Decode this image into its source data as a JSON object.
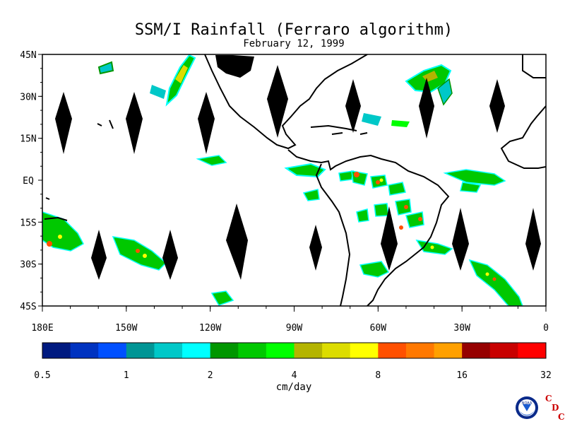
{
  "title": "SSM/I Rainfall (Ferraro algorithm)",
  "subtitle": "February 12, 1999",
  "lat_labels": [
    "45N",
    "30N",
    "15N",
    "EQ",
    "15S",
    "30S",
    "45S"
  ],
  "lon_labels": [
    "180E",
    "150W",
    "120W",
    "90W",
    "60W",
    "30W",
    "0"
  ],
  "colorbar": {
    "colors": [
      "#001a80",
      "#0033c0",
      "#0050ff",
      "#009595",
      "#00c8c8",
      "#00ffff",
      "#009600",
      "#00c800",
      "#00ff00",
      "#b4b400",
      "#dcdc00",
      "#ffff00",
      "#ff5000",
      "#ff7800",
      "#ffa000",
      "#960000",
      "#c80000",
      "#ff0000"
    ],
    "tick_labels": [
      "0.5",
      "1",
      "2",
      "4",
      "8",
      "16",
      "32"
    ],
    "unit": "cm/day"
  },
  "logo": {
    "text": "NOAA",
    "letters": [
      "C",
      "D",
      "C"
    ],
    "accent": "#cc0000"
  }
}
